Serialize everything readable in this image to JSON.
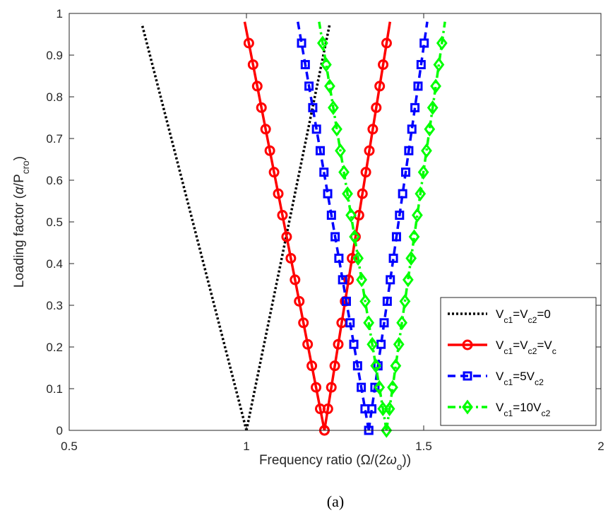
{
  "chart_data": {
    "type": "line",
    "xlim": [
      0.5,
      2
    ],
    "ylim": [
      0,
      1
    ],
    "xticks": [
      "0.5",
      "1",
      "1.5",
      "2"
    ],
    "yticks": [
      "0",
      "0.1",
      "0.2",
      "0.3",
      "0.4",
      "0.5",
      "0.6",
      "0.7",
      "0.8",
      "0.9",
      "1"
    ],
    "xlabel": {
      "prefix": "Frequency ratio (Ω/(2",
      "sym": "ω",
      "sub": "o",
      "suffix": "))"
    },
    "ylabel": {
      "prefix": "Loading factor (",
      "sym": "α",
      "mid": "/P",
      "sub": "cro",
      "suffix": ")"
    },
    "caption": "(a)",
    "grid": false,
    "legend_position": "bottom-right",
    "series": [
      {
        "legend": [
          {
            "t": "V"
          },
          {
            "s": "c1"
          },
          {
            "t": "=V"
          },
          {
            "s": "c2"
          },
          {
            "t": "=0"
          }
        ],
        "color": "#000000",
        "line": "dotted",
        "marker": "none",
        "left": [
          [
            1.0,
            0.0
          ],
          [
            0.705,
            0.975
          ]
        ],
        "right": [
          [
            1.0,
            0.0
          ],
          [
            1.235,
            0.975
          ]
        ]
      },
      {
        "legend": [
          {
            "t": "V"
          },
          {
            "s": "c1"
          },
          {
            "t": "=V"
          },
          {
            "s": "c2"
          },
          {
            "t": "=V"
          },
          {
            "s": "c"
          }
        ],
        "color": "#ff0000",
        "line": "solid",
        "marker": "circle",
        "left": [
          [
            1.22,
            0.0
          ],
          [
            0.995,
            0.98
          ]
        ],
        "right": [
          [
            1.22,
            0.0
          ],
          [
            1.405,
            0.98
          ]
        ]
      },
      {
        "legend": [
          {
            "t": "V"
          },
          {
            "s": "c1"
          },
          {
            "t": "=5V"
          },
          {
            "s": "c2"
          }
        ],
        "color": "#0000ff",
        "line": "dashed",
        "marker": "square",
        "left": [
          [
            1.345,
            0.0
          ],
          [
            1.145,
            0.98
          ]
        ],
        "right": [
          [
            1.345,
            0.0
          ],
          [
            1.51,
            0.98
          ]
        ]
      },
      {
        "legend": [
          {
            "t": "V"
          },
          {
            "s": "c1"
          },
          {
            "t": "=10V"
          },
          {
            "s": "c2"
          }
        ],
        "color": "#00ff00",
        "line": "dashdot",
        "marker": "diamond",
        "left": [
          [
            1.395,
            0.0
          ],
          [
            1.205,
            0.98
          ]
        ],
        "right": [
          [
            1.395,
            0.0
          ],
          [
            1.56,
            0.98
          ]
        ]
      }
    ]
  }
}
